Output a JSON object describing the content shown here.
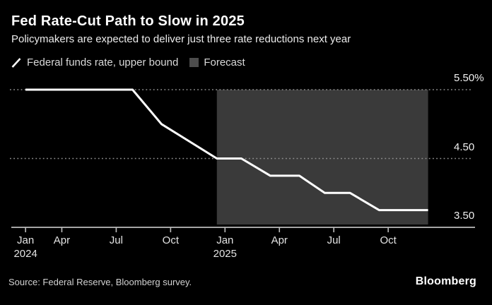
{
  "header": {
    "title": "Fed Rate-Cut Path to Slow in 2025",
    "subtitle": "Policymakers are expected to deliver just three rate reductions next year"
  },
  "legend": {
    "series_label": "Federal funds rate, upper bound",
    "forecast_label": "Forecast"
  },
  "footer": {
    "source": "Source: Federal Reserve, Bloomberg survey.",
    "brand": "Bloomberg"
  },
  "colors": {
    "background": "#000000",
    "line": "#ffffff",
    "forecast_region": "#3a3a3a",
    "forecast_swatch": "#4d4d4d",
    "gridline": "#8f8f8f",
    "axis": "#bdbdbd",
    "text_primary": "#ffffff",
    "text_secondary": "#d9d9d9"
  },
  "chart_data": {
    "type": "line",
    "title": "Fed Rate-Cut Path to Slow in 2025",
    "subtitle": "Policymakers are expected to deliver just three rate reductions next year",
    "grid": "horizontal-dotted",
    "legend_position": "top-left",
    "x_axis": {
      "unit": "months since Jan 2024",
      "range_months": [
        0,
        23.5
      ],
      "ticks": [
        {
          "label": "Jan",
          "sublabel": "2024",
          "month": 1
        },
        {
          "label": "Apr",
          "month": 3
        },
        {
          "label": "Jul",
          "month": 6
        },
        {
          "label": "Oct",
          "month": 9
        },
        {
          "label": "Jan",
          "sublabel": "2025",
          "month": 12
        },
        {
          "label": "Apr",
          "month": 15
        },
        {
          "label": "Jul",
          "month": 18
        },
        {
          "label": "Oct",
          "month": 21
        }
      ]
    },
    "y_axis": {
      "unit": "percent",
      "range": [
        3.5,
        5.5
      ],
      "ticks": [
        {
          "label": "5.50%",
          "value": 5.5
        },
        {
          "label": "4.50",
          "value": 4.5
        },
        {
          "label": "3.50",
          "value": 3.5
        }
      ]
    },
    "series": [
      {
        "name": "Federal funds rate, upper bound",
        "color": "#ffffff",
        "points_month_value": [
          [
            1.0,
            5.5
          ],
          [
            6.9,
            5.5
          ],
          [
            8.5,
            5.0
          ],
          [
            11.55,
            4.5
          ],
          [
            12.9,
            4.5
          ],
          [
            14.5,
            4.25
          ],
          [
            16.1,
            4.25
          ],
          [
            17.5,
            4.0
          ],
          [
            18.9,
            4.0
          ],
          [
            20.5,
            3.75
          ],
          [
            23.2,
            3.75
          ]
        ]
      }
    ],
    "forecast_region": {
      "label": "Forecast",
      "start_month": 11.55,
      "end_month": 23.2
    }
  }
}
